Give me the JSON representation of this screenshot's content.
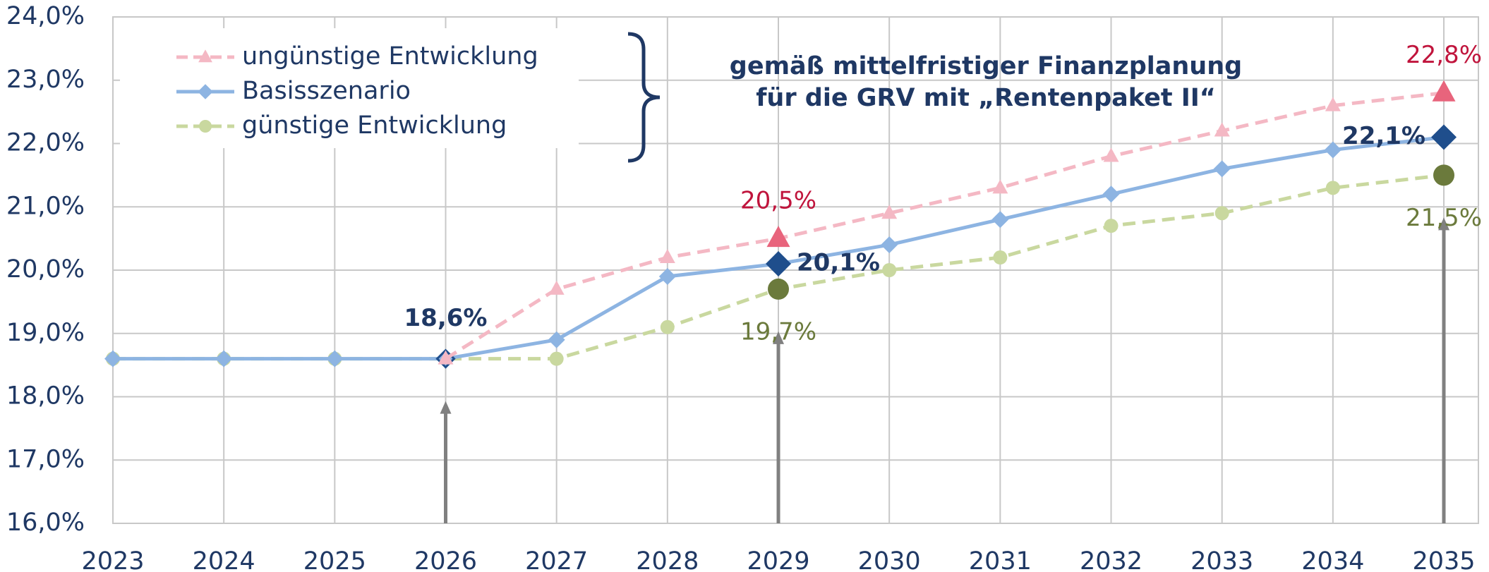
{
  "chart_data": {
    "type": "line",
    "annotation": [
      "gemäß mittelfristiger Finanzplanung",
      "für die GRV mit „Rentenpaket II“"
    ],
    "categories": [
      "2023",
      "2024",
      "2025",
      "2026",
      "2027",
      "2028",
      "2029",
      "2030",
      "2031",
      "2032",
      "2033",
      "2034",
      "2035"
    ],
    "ylim": [
      16,
      24
    ],
    "yticks": [
      {
        "value": 16,
        "label": "16,0%"
      },
      {
        "value": 17,
        "label": "17,0%"
      },
      {
        "value": 18,
        "label": "18,0%"
      },
      {
        "value": 19,
        "label": "19,0%"
      },
      {
        "value": 20,
        "label": "20,0%"
      },
      {
        "value": 21,
        "label": "21,0%"
      },
      {
        "value": 22,
        "label": "22,0%"
      },
      {
        "value": 23,
        "label": "23,0%"
      },
      {
        "value": 24,
        "label": "24,0%"
      }
    ],
    "grid": true,
    "legend": "top-left",
    "series": [
      {
        "name": "ungünstige Entwicklung",
        "color": "#f4b8c4",
        "highlight_color": "#e8647c",
        "label_color": "#c0143c",
        "marker": "triangle",
        "dashed": true,
        "values": [
          null,
          null,
          null,
          18.6,
          19.7,
          20.2,
          20.5,
          20.9,
          21.3,
          21.8,
          22.2,
          22.6,
          22.8
        ],
        "value_labels": [
          null,
          null,
          null,
          null,
          null,
          null,
          "20,5%",
          null,
          null,
          null,
          null,
          null,
          "22,8%"
        ]
      },
      {
        "name": "Basisszenario",
        "color": "#8db4e2",
        "highlight_color": "#1f4e8c",
        "label_color": "#1f3864",
        "marker": "diamond",
        "dashed": false,
        "values": [
          18.6,
          18.6,
          18.6,
          18.6,
          18.9,
          19.9,
          20.1,
          20.4,
          20.8,
          21.2,
          21.6,
          21.9,
          22.1
        ],
        "value_labels": [
          null,
          null,
          null,
          "18,6%",
          null,
          null,
          "20,1%",
          null,
          null,
          null,
          null,
          null,
          "22,1%"
        ]
      },
      {
        "name": "günstige Entwicklung",
        "color": "#c9d89f",
        "highlight_color": "#6b7a3c",
        "label_color": "#6b7a3c",
        "marker": "circle",
        "dashed": true,
        "values": [
          18.6,
          18.6,
          18.6,
          18.6,
          18.6,
          19.1,
          19.7,
          20.0,
          20.2,
          20.7,
          20.9,
          21.3,
          21.5
        ],
        "value_labels": [
          null,
          null,
          null,
          null,
          null,
          null,
          "19,7%",
          null,
          null,
          null,
          null,
          null,
          "21,5%"
        ]
      }
    ]
  }
}
